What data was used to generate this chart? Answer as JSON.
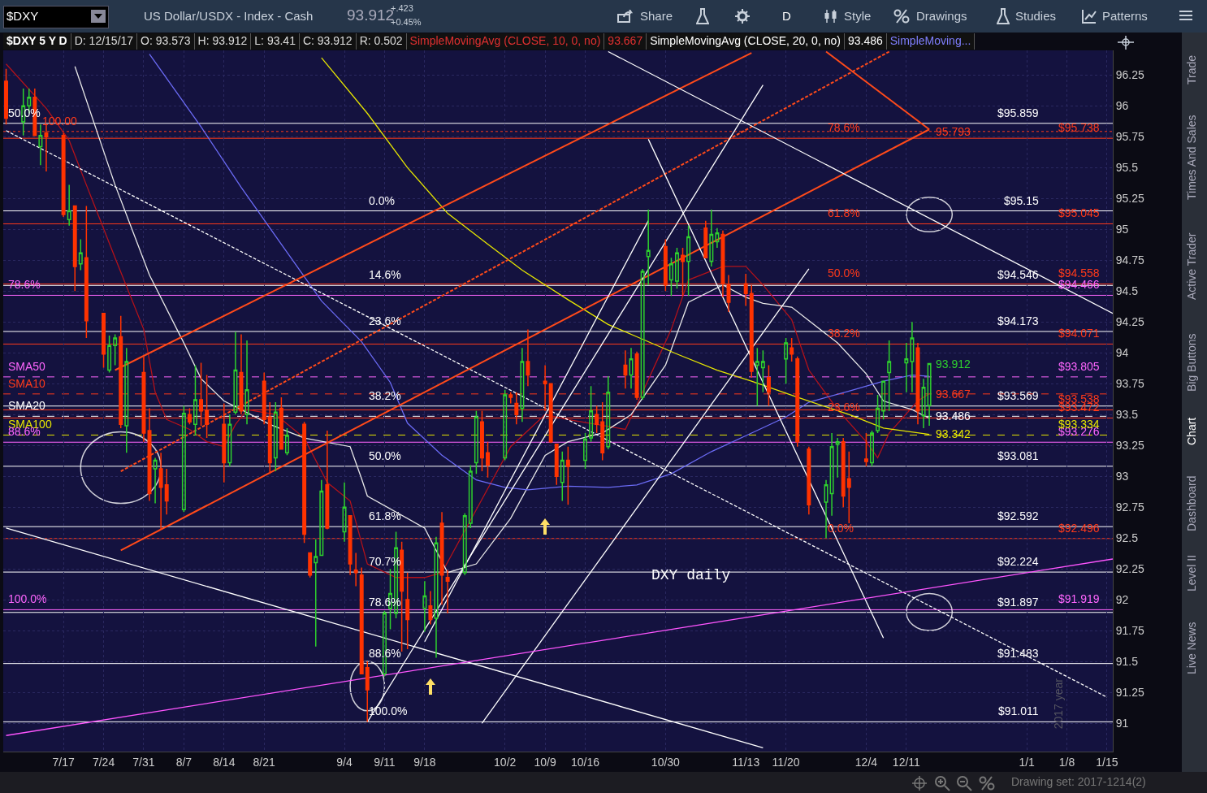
{
  "chart_data": {
    "type": "candlestick",
    "title": "$DXY 5 Y D",
    "x": [
      "2017-07-07",
      "2017-07-10",
      "2017-07-11",
      "2017-07-12",
      "2017-07-13",
      "2017-07-14",
      "2017-07-17",
      "2017-07-18",
      "2017-07-19",
      "2017-07-20",
      "2017-07-21",
      "2017-07-24",
      "2017-07-25",
      "2017-07-26",
      "2017-07-27",
      "2017-07-28",
      "2017-07-31",
      "2017-08-01",
      "2017-08-02",
      "2017-08-03",
      "2017-08-04",
      "2017-08-07",
      "2017-08-08",
      "2017-08-09",
      "2017-08-10",
      "2017-08-11",
      "2017-08-14",
      "2017-08-15",
      "2017-08-16",
      "2017-08-17",
      "2017-08-18",
      "2017-08-21",
      "2017-08-22",
      "2017-08-23",
      "2017-08-24",
      "2017-08-25",
      "2017-08-28",
      "2017-08-29",
      "2017-08-30",
      "2017-08-31",
      "2017-09-01",
      "2017-09-04",
      "2017-09-05",
      "2017-09-06",
      "2017-09-07",
      "2017-09-08",
      "2017-09-11",
      "2017-09-12",
      "2017-09-13",
      "2017-09-14",
      "2017-09-15",
      "2017-09-18",
      "2017-09-19",
      "2017-09-20",
      "2017-09-21",
      "2017-09-22",
      "2017-09-25",
      "2017-09-26",
      "2017-09-27",
      "2017-09-28",
      "2017-09-29",
      "2017-10-02",
      "2017-10-03",
      "2017-10-04",
      "2017-10-05",
      "2017-10-06",
      "2017-10-09",
      "2017-10-10",
      "2017-10-11",
      "2017-10-12",
      "2017-10-13",
      "2017-10-16",
      "2017-10-17",
      "2017-10-18",
      "2017-10-19",
      "2017-10-20",
      "2017-10-23",
      "2017-10-24",
      "2017-10-25",
      "2017-10-26",
      "2017-10-27",
      "2017-10-30",
      "2017-10-31",
      "2017-11-01",
      "2017-11-02",
      "2017-11-03",
      "2017-11-06",
      "2017-11-07",
      "2017-11-08",
      "2017-11-09",
      "2017-11-10",
      "2017-11-13",
      "2017-11-14",
      "2017-11-15",
      "2017-11-16",
      "2017-11-17",
      "2017-11-20",
      "2017-11-21",
      "2017-11-22",
      "2017-11-24",
      "2017-11-27",
      "2017-11-28",
      "2017-11-29",
      "2017-11-30",
      "2017-12-01",
      "2017-12-04",
      "2017-12-05",
      "2017-12-06",
      "2017-12-07",
      "2017-12-08",
      "2017-12-11",
      "2017-12-12",
      "2017-12-13",
      "2017-12-14",
      "2017-12-15"
    ],
    "ohlc": [
      [
        96.2,
        96.3,
        95.85,
        95.9
      ],
      [
        95.87,
        96.14,
        95.76,
        96.0
      ],
      [
        96.0,
        96.14,
        95.94,
        96.07
      ],
      [
        96.07,
        96.14,
        95.76,
        95.76
      ],
      [
        95.67,
        95.85,
        95.52,
        95.76
      ],
      [
        95.78,
        95.85,
        95.47,
        95.75
      ],
      [
        95.76,
        95.78,
        95.1,
        95.12
      ],
      [
        95.08,
        95.36,
        95.03,
        95.15
      ],
      [
        95.19,
        95.19,
        94.5,
        94.7
      ],
      [
        94.72,
        94.92,
        94.67,
        94.81
      ],
      [
        94.77,
        95.19,
        94.12,
        94.26
      ],
      [
        94.32,
        94.32,
        93.88,
        93.99
      ],
      [
        93.86,
        94.14,
        93.84,
        94.06
      ],
      [
        94.06,
        94.15,
        93.9,
        94.12
      ],
      [
        94.13,
        94.3,
        93.39,
        93.42
      ],
      [
        93.41,
        94.04,
        93.19,
        93.93
      ],
      [
        93.84,
        93.97,
        93.28,
        93.35
      ],
      [
        93.37,
        93.55,
        92.8,
        92.86
      ],
      [
        93.06,
        93.15,
        92.78,
        93.13
      ],
      [
        93.06,
        93.19,
        92.57,
        92.91
      ],
      [
        92.93,
        93.06,
        92.69,
        92.8
      ],
      [
        92.73,
        93.57,
        92.71,
        93.51
      ],
      [
        93.5,
        93.55,
        93.42,
        93.44
      ],
      [
        93.42,
        93.9,
        93.33,
        93.62
      ],
      [
        93.62,
        93.92,
        93.41,
        93.53
      ],
      [
        93.53,
        93.82,
        93.31,
        93.42
      ],
      [
        93.42,
        93.59,
        92.95,
        93.11
      ],
      [
        93.11,
        93.5,
        93.08,
        93.42
      ],
      [
        93.52,
        94.17,
        93.5,
        93.86
      ],
      [
        93.84,
        94.15,
        93.5,
        93.53
      ],
      [
        93.5,
        94.1,
        93.42,
        93.7
      ],
      [
        93.77,
        93.84,
        93.42,
        93.46
      ],
      [
        93.48,
        93.6,
        93.02,
        93.11
      ],
      [
        93.15,
        93.6,
        93.04,
        93.52
      ],
      [
        93.55,
        93.64,
        93.22,
        93.22
      ],
      [
        93.19,
        93.39,
        93.17,
        93.33
      ],
      [
        93.42,
        93.44,
        92.46,
        92.53
      ],
      [
        92.38,
        92.38,
        92.18,
        92.2
      ],
      [
        92.3,
        92.49,
        91.62,
        92.35
      ],
      [
        92.36,
        92.97,
        92.36,
        92.88
      ],
      [
        92.93,
        93.37,
        92.57,
        92.58
      ],
      [
        92.55,
        92.95,
        92.47,
        92.75
      ],
      [
        92.68,
        92.68,
        92.2,
        92.29
      ],
      [
        92.24,
        92.38,
        92.11,
        92.22
      ],
      [
        92.2,
        92.26,
        91.4,
        91.4
      ],
      [
        91.45,
        91.5,
        91.01,
        91.27
      ],
      [
        91.4,
        91.91,
        91.38,
        91.89
      ],
      [
        91.93,
        92.25,
        91.76,
        92.05
      ],
      [
        91.89,
        92.55,
        91.85,
        92.42
      ],
      [
        92.4,
        92.47,
        91.58,
        92.07
      ],
      [
        92.0,
        92.22,
        91.6,
        91.84
      ],
      [
        91.93,
        92.15,
        91.74,
        92.03
      ],
      [
        91.95,
        92.07,
        91.8,
        91.84
      ],
      [
        91.85,
        92.51,
        91.53,
        92.46
      ],
      [
        92.62,
        92.71,
        91.96,
        92.2
      ],
      [
        92.18,
        92.24,
        91.89,
        92.15
      ],
      [
        92.22,
        92.7,
        92.2,
        92.68
      ],
      [
        92.62,
        93.09,
        92.58,
        93.04
      ],
      [
        93.11,
        93.53,
        93.02,
        93.48
      ],
      [
        93.44,
        93.53,
        93.04,
        93.15
      ],
      [
        93.19,
        93.28,
        92.99,
        93.09
      ],
      [
        93.15,
        93.7,
        93.13,
        93.66
      ],
      [
        93.66,
        93.68,
        93.59,
        93.64
      ],
      [
        93.59,
        93.68,
        93.42,
        93.5
      ],
      [
        93.55,
        94.04,
        93.44,
        93.93
      ],
      [
        93.93,
        94.19,
        93.73,
        93.82
      ],
      [
        93.77,
        93.9,
        93.53,
        93.75
      ],
      [
        93.75,
        93.75,
        93.27,
        93.28
      ],
      [
        93.26,
        93.26,
        92.93,
        93.0
      ],
      [
        92.95,
        93.2,
        92.8,
        93.13
      ],
      [
        93.13,
        93.24,
        92.77,
        93.08
      ],
      [
        93.13,
        93.35,
        93.06,
        93.3
      ],
      [
        93.31,
        93.73,
        93.28,
        93.53
      ],
      [
        93.5,
        93.57,
        93.35,
        93.42
      ],
      [
        93.44,
        93.6,
        93.13,
        93.19
      ],
      [
        93.24,
        93.81,
        93.22,
        93.68
      ],
      [
        93.9,
        94.02,
        93.71,
        93.82
      ],
      [
        93.82,
        94.04,
        93.71,
        93.95
      ],
      [
        93.99,
        94.01,
        93.62,
        93.64
      ],
      [
        93.64,
        94.68,
        93.62,
        94.66
      ],
      [
        94.78,
        95.16,
        94.55,
        94.83
      ],
      [
        94.86,
        94.92,
        94.5,
        94.55
      ],
      [
        94.59,
        94.77,
        94.46,
        94.72
      ],
      [
        94.58,
        94.85,
        94.52,
        94.81
      ],
      [
        94.79,
        94.85,
        94.46,
        94.74
      ],
      [
        94.74,
        95.03,
        94.46,
        94.94
      ],
      [
        95.01,
        95.07,
        94.77,
        94.77
      ],
      [
        94.74,
        95.16,
        94.7,
        94.96
      ],
      [
        94.9,
        95.01,
        94.85,
        94.97
      ],
      [
        94.96,
        94.99,
        94.45,
        94.56
      ],
      [
        94.55,
        94.63,
        94.33,
        94.41
      ],
      [
        94.56,
        94.64,
        94.38,
        94.48
      ],
      [
        94.48,
        94.55,
        93.8,
        93.85
      ],
      [
        93.9,
        94.04,
        93.57,
        93.93
      ],
      [
        93.88,
        94.02,
        93.68,
        93.93
      ],
      [
        93.8,
        93.9,
        93.57,
        93.68
      ],
      [
        93.95,
        94.12,
        93.75,
        94.08
      ],
      [
        94.04,
        94.12,
        93.93,
        93.99
      ],
      [
        93.95,
        93.97,
        93.24,
        93.28
      ],
      [
        93.22,
        93.24,
        92.69,
        92.77
      ],
      [
        92.79,
        92.97,
        92.5,
        92.93
      ],
      [
        92.86,
        93.35,
        92.68,
        93.24
      ],
      [
        93.26,
        93.31,
        92.99,
        93.28
      ],
      [
        93.28,
        93.31,
        92.75,
        92.84
      ],
      [
        92.98,
        93.2,
        92.62,
        92.91
      ],
      [
        93.14,
        93.35,
        93.08,
        93.12
      ],
      [
        93.11,
        93.37,
        93.08,
        93.35
      ],
      [
        93.37,
        93.66,
        93.35,
        93.55
      ],
      [
        93.53,
        93.77,
        93.46,
        93.77
      ],
      [
        93.84,
        94.1,
        93.53,
        93.93
      ],
      [
        93.92,
        94.08,
        93.68,
        93.95
      ],
      [
        93.93,
        94.25,
        93.68,
        94.12
      ],
      [
        94.04,
        94.08,
        93.42,
        93.53
      ],
      [
        93.49,
        93.79,
        93.39,
        93.72
      ],
      [
        93.573,
        93.912,
        93.41,
        93.912
      ]
    ],
    "series": [
      {
        "type": "line",
        "color": "#b3121a",
        "x": [
          "2017-07-07",
          "2017-07-14",
          "2017-07-18",
          "2017-07-21",
          "2017-07-26",
          "2017-07-31",
          "2017-08-02",
          "2017-08-04",
          "2017-08-08",
          "2017-08-11",
          "2017-08-14",
          "2017-08-16",
          "2017-08-18",
          "2017-08-23",
          "2017-08-28",
          "2017-09-01",
          "2017-09-05",
          "2017-09-08",
          "2017-09-13",
          "2017-09-18",
          "2017-09-21",
          "2017-09-27",
          "2017-10-03",
          "2017-10-09",
          "2017-10-13",
          "2017-10-18",
          "2017-10-23",
          "2017-10-26",
          "2017-10-31",
          "2017-11-03",
          "2017-11-09",
          "2017-11-13",
          "2017-11-16",
          "2017-11-21",
          "2017-11-24",
          "2017-11-29",
          "2017-12-04",
          "2017-12-06",
          "2017-12-08",
          "2017-12-13",
          "2017-12-15"
        ],
        "values": [
          96.34,
          95.98,
          95.72,
          95.36,
          94.77,
          94.19,
          93.68,
          93.46,
          93.38,
          93.28,
          93.24,
          93.42,
          93.54,
          93.5,
          93.31,
          92.95,
          92.8,
          92.29,
          92.18,
          92.18,
          92.22,
          92.73,
          93.24,
          93.5,
          93.46,
          93.42,
          93.38,
          93.68,
          94.19,
          94.59,
          94.7,
          94.7,
          94.55,
          94.27,
          93.86,
          93.54,
          93.28,
          93.15,
          93.35,
          93.61,
          93.67
        ]
      },
      {
        "type": "line",
        "color": "#e8e8e8",
        "x": [
          "2017-07-19",
          "2017-07-26",
          "2017-08-01",
          "2017-08-07",
          "2017-08-10",
          "2017-08-14",
          "2017-08-17",
          "2017-08-22",
          "2017-08-28",
          "2017-09-05",
          "2017-09-07",
          "2017-09-08",
          "2017-09-18",
          "2017-09-22",
          "2017-09-27",
          "2017-10-03",
          "2017-10-09",
          "2017-10-13",
          "2017-10-19",
          "2017-10-24",
          "2017-10-30",
          "2017-11-03",
          "2017-11-09",
          "2017-11-13",
          "2017-11-16",
          "2017-11-21",
          "2017-11-29",
          "2017-12-04",
          "2017-12-07",
          "2017-12-12",
          "2017-12-15"
        ],
        "values": [
          96.32,
          95.36,
          94.63,
          94.08,
          93.79,
          93.61,
          93.54,
          93.42,
          93.31,
          93.24,
          92.98,
          92.84,
          92.58,
          92.22,
          92.29,
          92.66,
          93.17,
          93.28,
          93.35,
          93.5,
          93.9,
          94.41,
          94.55,
          94.45,
          94.4,
          94.37,
          94.08,
          93.83,
          93.61,
          93.54,
          93.47
        ]
      },
      {
        "type": "line",
        "color": "#6b6bf5",
        "x": [
          "2017-08-01",
          "2017-08-10",
          "2017-08-17",
          "2017-08-24",
          "2017-08-31",
          "2017-09-07",
          "2017-09-12",
          "2017-09-15",
          "2017-09-21",
          "2017-09-27",
          "2017-10-02",
          "2017-10-06",
          "2017-10-13",
          "2017-10-20",
          "2017-10-25",
          "2017-10-31",
          "2017-11-07",
          "2017-11-14",
          "2017-11-20",
          "2017-11-24",
          "2017-12-01",
          "2017-12-07",
          "2017-12-12",
          "2017-12-15"
        ],
        "values": [
          96.42,
          95.83,
          95.34,
          94.88,
          94.42,
          94.09,
          93.76,
          93.43,
          93.17,
          92.97,
          92.91,
          92.89,
          92.92,
          92.91,
          92.93,
          93.02,
          93.2,
          93.35,
          93.48,
          93.6,
          93.69,
          93.77,
          93.82,
          93.81
        ]
      },
      {
        "type": "line",
        "color": "#e6e600",
        "x": [
          "2017-08-31",
          "2017-09-08",
          "2017-09-15",
          "2017-09-22",
          "2017-09-29",
          "2017-10-05",
          "2017-10-13",
          "2017-10-20",
          "2017-10-25",
          "2017-11-01",
          "2017-11-08",
          "2017-11-14",
          "2017-11-22",
          "2017-12-01",
          "2017-12-07",
          "2017-12-15"
        ],
        "values": [
          96.39,
          95.94,
          95.5,
          95.13,
          94.88,
          94.67,
          94.43,
          94.23,
          94.13,
          93.99,
          93.86,
          93.77,
          93.64,
          93.5,
          93.39,
          93.34
        ]
      },
      {
        "type": "line",
        "color": "#ffffff",
        "line_style": "dashed",
        "x": [
          "2017-07-07",
          "2018-01-15"
        ],
        "values": [
          95.8,
          91.21
        ]
      },
      {
        "type": "line",
        "color": "#ff4a1a",
        "x": [
          "2017-07-26",
          "2017-11-14"
        ],
        "values": [
          93.86,
          96.43
        ]
      },
      {
        "type": "line",
        "color": "#ff4a1a",
        "x": [
          "2017-07-27",
          "2017-12-15"
        ],
        "values": [
          92.4,
          95.81
        ]
      },
      {
        "type": "line",
        "color": "#ff4a1a",
        "line_style": "dashed",
        "x": [
          "2017-07-27",
          "2017-12-08"
        ],
        "values": [
          93.04,
          96.44
        ]
      },
      {
        "type": "line",
        "color": "#ff4a1a",
        "x": [
          "2017-11-27",
          "2017-12-15"
        ],
        "values": [
          96.44,
          95.81
        ]
      },
      {
        "type": "line",
        "color": "#ffffff",
        "x": [
          "2017-09-08",
          "2017-11-16"
        ],
        "values": [
          91.01,
          96.17
        ]
      },
      {
        "type": "line",
        "color": "#ffffff",
        "x": [
          "2017-09-18",
          "2017-10-27"
        ],
        "values": [
          91.66,
          95.07
        ]
      },
      {
        "type": "line",
        "color": "#ffffff",
        "x": [
          "2017-09-28",
          "2017-11-24"
        ],
        "values": [
          91.0,
          94.68
        ]
      },
      {
        "type": "line",
        "color": "#ffffff",
        "x": [
          "2017-10-27",
          "2017-12-07"
        ],
        "values": [
          95.73,
          91.69
        ]
      },
      {
        "type": "line",
        "color": "#ffffff",
        "x": [
          "2017-10-20",
          "2018-01-16"
        ],
        "values": [
          96.44,
          94.32
        ]
      },
      {
        "type": "line",
        "color": "#ffffff",
        "x": [
          "2017-07-07",
          "2017-11-16"
        ],
        "values": [
          92.58,
          90.8
        ]
      },
      {
        "type": "line",
        "color": "#ff55ff",
        "x": [
          "2017-07-07",
          "2018-01-16"
        ],
        "values": [
          90.9,
          92.33
        ]
      }
    ],
    "xlim": [
      "2017-07-06T12:00",
      "2018-01-16"
    ],
    "xticks": [
      {
        "value": "2017-07-17",
        "label": "7/17"
      },
      {
        "value": "2017-07-24",
        "label": "7/24"
      },
      {
        "value": "2017-07-31",
        "label": "7/31"
      },
      {
        "value": "2017-08-07",
        "label": "8/7"
      },
      {
        "value": "2017-08-14",
        "label": "8/14"
      },
      {
        "value": "2017-08-21",
        "label": "8/21"
      },
      {
        "value": "2017-09-04",
        "label": "9/4"
      },
      {
        "value": "2017-09-11",
        "label": "9/11"
      },
      {
        "value": "2017-09-18",
        "label": "9/18"
      },
      {
        "value": "2017-10-02",
        "label": "10/2"
      },
      {
        "value": "2017-10-09",
        "label": "10/9"
      },
      {
        "value": "2017-10-16",
        "label": "10/16"
      },
      {
        "value": "2017-10-30",
        "label": "10/30"
      },
      {
        "value": "2017-11-13",
        "label": "11/13"
      },
      {
        "value": "2017-11-20",
        "label": "11/20"
      },
      {
        "value": "2017-12-04",
        "label": "12/4"
      },
      {
        "value": "2017-12-11",
        "label": "12/11"
      },
      {
        "value": "2018-01-01",
        "label": "1/1"
      },
      {
        "value": "2018-01-08",
        "label": "1/8"
      },
      {
        "value": "2018-01-15",
        "label": "1/15"
      }
    ],
    "ylim": [
      90.77,
      96.45
    ],
    "yticks": [
      91,
      91.25,
      91.5,
      91.75,
      92,
      92.25,
      92.5,
      92.75,
      93,
      93.25,
      93.5,
      93.75,
      94,
      94.25,
      94.5,
      94.75,
      95,
      95.25,
      95.5,
      95.75,
      96,
      96.25
    ],
    "grid": true,
    "ref_lines": [
      {
        "axis": "y",
        "value": 95.15,
        "label": "$95.15",
        "color": "#ffffff"
      },
      {
        "axis": "y",
        "value": 94.546,
        "label": "$94.546",
        "color": "#ffffff"
      },
      {
        "axis": "y",
        "value": 94.173,
        "label": "$94.173",
        "color": "#ffffff"
      },
      {
        "axis": "y",
        "value": 93.569,
        "label": "$93.569",
        "color": "#ffffff"
      },
      {
        "axis": "y",
        "value": 93.081,
        "label": "$93.081",
        "color": "#ffffff"
      },
      {
        "axis": "y",
        "value": 92.592,
        "label": "$92.592",
        "color": "#ffffff"
      },
      {
        "axis": "y",
        "value": 92.224,
        "label": "$92.224",
        "color": "#ffffff"
      },
      {
        "axis": "y",
        "value": 91.897,
        "label": "$91.897",
        "color": "#ffffff"
      },
      {
        "axis": "y",
        "value": 91.483,
        "label": "$91.483",
        "color": "#ffffff"
      },
      {
        "axis": "y",
        "value": 91.011,
        "label": "$91.011",
        "color": "#ffffff"
      },
      {
        "axis": "y",
        "value": 95.859,
        "label": "$95.859",
        "color": "#ffffff"
      },
      {
        "axis": "y",
        "value": 95.738,
        "label": "$95.738",
        "color": "#ff3a1a"
      },
      {
        "axis": "y",
        "value": 95.045,
        "label": "$95.045",
        "color": "#ff3a1a"
      },
      {
        "axis": "y",
        "value": 94.558,
        "label": "$94.558",
        "color": "#ff3a1a"
      },
      {
        "axis": "y",
        "value": 94.071,
        "label": "$94.071",
        "color": "#ff3a1a"
      },
      {
        "axis": "y",
        "value": 93.538,
        "label": "$93.538",
        "color": "#ff3a1a"
      },
      {
        "axis": "y",
        "value": 93.472,
        "label": "$93.472",
        "color": "#ff3a1a"
      },
      {
        "axis": "y",
        "value": 92.496,
        "label": "$92.496",
        "color": "#ff3a1a"
      },
      {
        "axis": "y",
        "value": 94.466,
        "label": "$94.466",
        "color": "#ff66ff"
      },
      {
        "axis": "y",
        "value": 93.276,
        "label": "$93.276",
        "color": "#ff66ff"
      },
      {
        "axis": "y",
        "value": 91.919,
        "label": "$91.919",
        "color": "#ff66ff"
      },
      {
        "axis": "y",
        "value": 93.805,
        "label": "$93.805",
        "color": "#ff66ff",
        "line_style": "dashed"
      },
      {
        "axis": "y",
        "value": 93.667,
        "color": "#ff3a1a",
        "line_style": "dashed"
      },
      {
        "axis": "y",
        "value": 93.486,
        "color": "#ffffff",
        "line_style": "dashed"
      },
      {
        "axis": "y",
        "value": 93.334,
        "label": "$93.334",
        "color": "#e6e600",
        "line_style": "dashed"
      },
      {
        "axis": "y",
        "value": 95.793,
        "color": "#ff3a1a",
        "line_style": "dotted"
      }
    ],
    "annotations": [
      "$DXY",
      "US Dollar/USDX - Index - Cash",
      "93.912",
      "+.423",
      "+0.45%",
      "Share",
      "D",
      "Style",
      "Drawings",
      "Studies",
      "Patterns",
      "D: 12/15/17",
      "O: 93.573",
      "H: 93.912",
      "L: 93.41",
      "C: 93.912",
      "R: 0.502",
      "SimpleMovingAvg (CLOSE, 10, 0, no)",
      "93.667",
      "SimpleMovingAvg (CLOSE, 20, 0, no)",
      "93.486",
      "SimpleMoving...",
      "Trade",
      "Times And Sales",
      "Active Trader",
      "Big Buttons",
      "Chart",
      "Dashboard",
      "Level II",
      "Live News",
      "Drawing set: 2017-1214(2)",
      "DXY daily",
      "2017 year",
      {
        "text": "0.0%",
        "x": "2017-09-08",
        "y": 95.15
      },
      {
        "text": "14.6%",
        "x": "2017-09-08",
        "y": 94.546
      },
      {
        "text": "23.6%",
        "x": "2017-09-08",
        "y": 94.173
      },
      {
        "text": "38.2%",
        "x": "2017-09-08",
        "y": 93.569
      },
      {
        "text": "50.0%",
        "x": "2017-09-08",
        "y": 93.081
      },
      {
        "text": "61.8%",
        "x": "2017-09-08",
        "y": 92.592
      },
      {
        "text": "70.7%",
        "x": "2017-09-08",
        "y": 92.224
      },
      {
        "text": "78.6%",
        "x": "2017-09-08",
        "y": 91.897
      },
      {
        "text": "88.6%",
        "x": "2017-09-08",
        "y": 91.483
      },
      {
        "text": "100.0%",
        "x": "2017-09-08",
        "y": 91.011
      },
      {
        "text": "78.6%",
        "x": "2017-11-27",
        "y": 95.738
      },
      {
        "text": "61.8%",
        "x": "2017-11-27",
        "y": 95.045
      },
      {
        "text": "50.0%",
        "x": "2017-11-27",
        "y": 94.558
      },
      {
        "text": "38.2%",
        "x": "2017-11-27",
        "y": 94.071
      },
      {
        "text": "23.6%",
        "x": "2017-11-27",
        "y": 93.472
      },
      {
        "text": "0.0%",
        "x": "2017-11-27",
        "y": 92.496
      },
      {
        "text": "50.0%",
        "x": "2017-07-07",
        "y": 95.859
      },
      {
        "text": "100.00",
        "x": "2017-07-13",
        "y": 95.793
      },
      {
        "text": "78.6%",
        "x": "2017-07-07",
        "y": 94.466
      },
      {
        "text": "SMA50",
        "x": "2017-07-07",
        "y": 93.805
      },
      {
        "text": "SMA10",
        "x": "2017-07-07",
        "y": 93.667
      },
      {
        "text": "SMA20",
        "x": "2017-07-07",
        "y": 93.486
      },
      {
        "text": "SMA100",
        "x": "2017-07-07",
        "y": 93.334
      },
      {
        "text": "88.6%",
        "x": "2017-07-07",
        "y": 93.276
      },
      {
        "text": "100.0%",
        "x": "2017-07-07",
        "y": 91.919
      },
      {
        "text": "95.793",
        "x": "2017-12-15",
        "y": 95.793
      },
      {
        "text": "93.912",
        "x": "2017-12-15",
        "y": 93.912
      },
      {
        "text": "93.667",
        "x": "2017-12-15",
        "y": 93.667
      },
      {
        "text": "93.486",
        "x": "2017-12-15",
        "y": 93.486
      },
      {
        "text": "93.342",
        "x": "2017-12-15",
        "y": 93.342
      }
    ]
  }
}
